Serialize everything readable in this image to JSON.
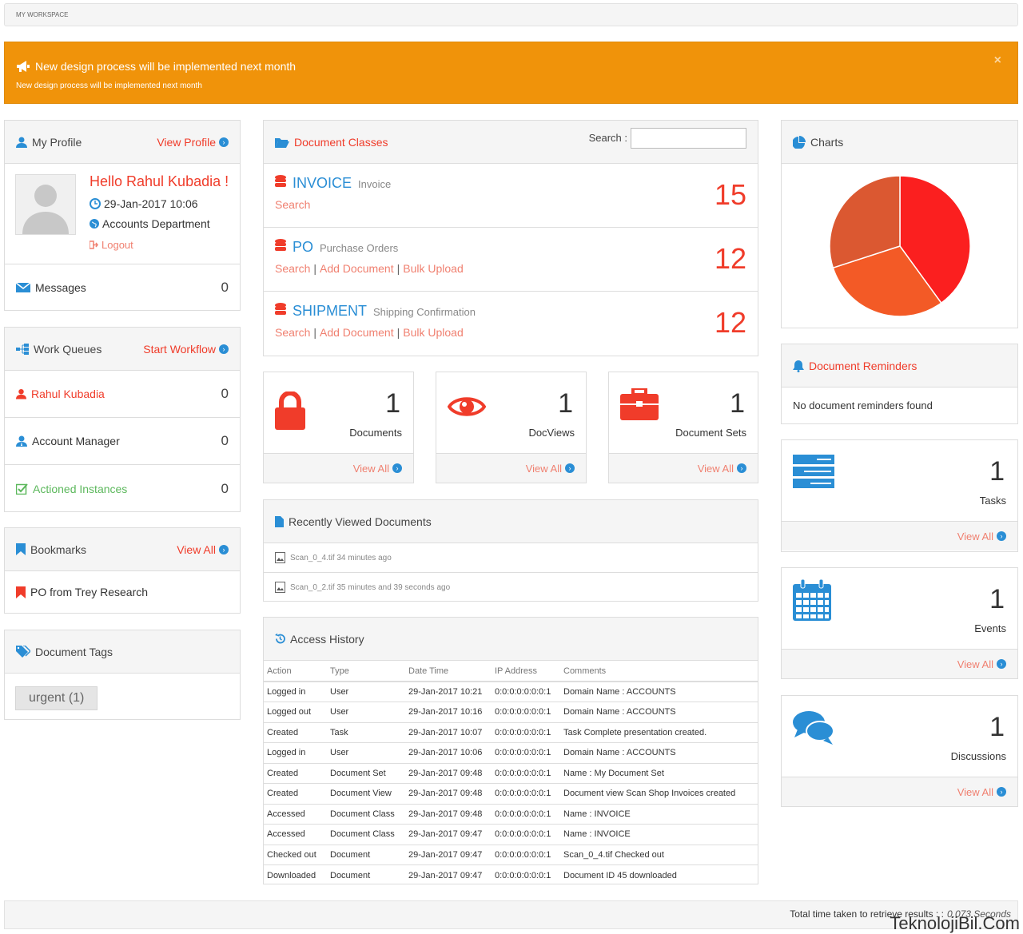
{
  "breadcrumb": "MY WORKSPACE",
  "alert": {
    "title": "New design process will be implemented next month",
    "message": "New design process will be implemented next month",
    "close": "×"
  },
  "profile": {
    "header": "My Profile",
    "view_link": "View Profile",
    "greeting": "Hello Rahul Kubadia !",
    "datetime": "29-Jan-2017 10:06",
    "department": "Accounts Department",
    "logout": "Logout",
    "messages_label": "Messages",
    "messages_count": "0"
  },
  "work_queues": {
    "header": "Work Queues",
    "start_link": "Start Workflow",
    "items": [
      {
        "label": "Rahul Kubadia",
        "count": "0"
      },
      {
        "label": "Account Manager",
        "count": "0"
      },
      {
        "label": "Actioned Instances",
        "count": "0"
      }
    ]
  },
  "bookmarks": {
    "header": "Bookmarks",
    "view_all": "View All",
    "items": [
      {
        "label": "PO from Trey Research"
      }
    ]
  },
  "tags": {
    "header": "Document Tags",
    "items": [
      {
        "label": "urgent (1)"
      }
    ]
  },
  "doc_classes": {
    "header": "Document Classes",
    "search_label": "Search :",
    "search_value": "",
    "items": [
      {
        "name": "INVOICE",
        "desc": "Invoice",
        "count": "15",
        "actions": [
          "Search"
        ]
      },
      {
        "name": "PO",
        "desc": "Purchase Orders",
        "count": "12",
        "actions": [
          "Search",
          "Add Document",
          "Bulk Upload"
        ]
      },
      {
        "name": "SHIPMENT",
        "desc": "Shipping Confirmation",
        "count": "12",
        "actions": [
          "Search",
          "Add Document",
          "Bulk Upload"
        ]
      }
    ]
  },
  "stats": [
    {
      "value": "1",
      "label": "Documents",
      "link": "View All",
      "icon": "lock-icon"
    },
    {
      "value": "1",
      "label": "DocViews",
      "link": "View All",
      "icon": "eye-icon"
    },
    {
      "value": "1",
      "label": "Document Sets",
      "link": "View All",
      "icon": "briefcase-icon"
    },
    {
      "value": "1",
      "label": "Tasks",
      "link": "View All",
      "icon": "tasks-icon"
    },
    {
      "value": "1",
      "label": "Events",
      "link": "View All",
      "icon": "calendar-icon"
    },
    {
      "value": "1",
      "label": "Discussions",
      "link": "View All",
      "icon": "comments-icon"
    }
  ],
  "recent": {
    "header": "Recently Viewed Documents",
    "items": [
      {
        "text": "Scan_0_4.tif 34 minutes ago"
      },
      {
        "text": "Scan_0_2.tif 35 minutes and 39 seconds ago"
      }
    ]
  },
  "history": {
    "header": "Access History",
    "columns": [
      "Action",
      "Type",
      "Date Time",
      "IP Address",
      "Comments"
    ],
    "rows": [
      [
        "Logged in",
        "User",
        "29-Jan-2017 10:21",
        "0:0:0:0:0:0:0:1",
        "Domain Name : ACCOUNTS"
      ],
      [
        "Logged out",
        "User",
        "29-Jan-2017 10:16",
        "0:0:0:0:0:0:0:1",
        "Domain Name : ACCOUNTS"
      ],
      [
        "Created",
        "Task",
        "29-Jan-2017 10:07",
        "0:0:0:0:0:0:0:1",
        "Task Complete presentation created."
      ],
      [
        "Logged in",
        "User",
        "29-Jan-2017 10:06",
        "0:0:0:0:0:0:0:1",
        "Domain Name : ACCOUNTS"
      ],
      [
        "Created",
        "Document Set",
        "29-Jan-2017 09:48",
        "0:0:0:0:0:0:0:1",
        "Name : My Document Set"
      ],
      [
        "Created",
        "Document View",
        "29-Jan-2017 09:48",
        "0:0:0:0:0:0:0:1",
        "Document view Scan Shop Invoices created"
      ],
      [
        "Accessed",
        "Document Class",
        "29-Jan-2017 09:48",
        "0:0:0:0:0:0:0:1",
        "Name : INVOICE"
      ],
      [
        "Accessed",
        "Document Class",
        "29-Jan-2017 09:47",
        "0:0:0:0:0:0:0:1",
        "Name : INVOICE"
      ],
      [
        "Checked out",
        "Document",
        "29-Jan-2017 09:47",
        "0:0:0:0:0:0:0:1",
        "Scan_0_4.tif Checked out"
      ],
      [
        "Downloaded",
        "Document",
        "29-Jan-2017 09:47",
        "0:0:0:0:0:0:0:1",
        "Document ID 45 downloaded"
      ]
    ]
  },
  "charts": {
    "header": "Charts",
    "chart_data": {
      "type": "pie",
      "slices": [
        {
          "value": 40,
          "color": "#fb1f1f"
        },
        {
          "value": 30,
          "color": "#f35a26"
        },
        {
          "value": 30,
          "color": "#db5831"
        }
      ]
    }
  },
  "reminders": {
    "header": "Document Reminders",
    "empty": "No document reminders found"
  },
  "footer": {
    "text": "Total time taken to retrieve results : :",
    "time": "0.073 Seconds"
  },
  "watermark": "TeknolojiBil.Com",
  "colors": {
    "accent": "#f03c2a",
    "alert": "#f0930a",
    "blue": "#2a8ed5"
  }
}
